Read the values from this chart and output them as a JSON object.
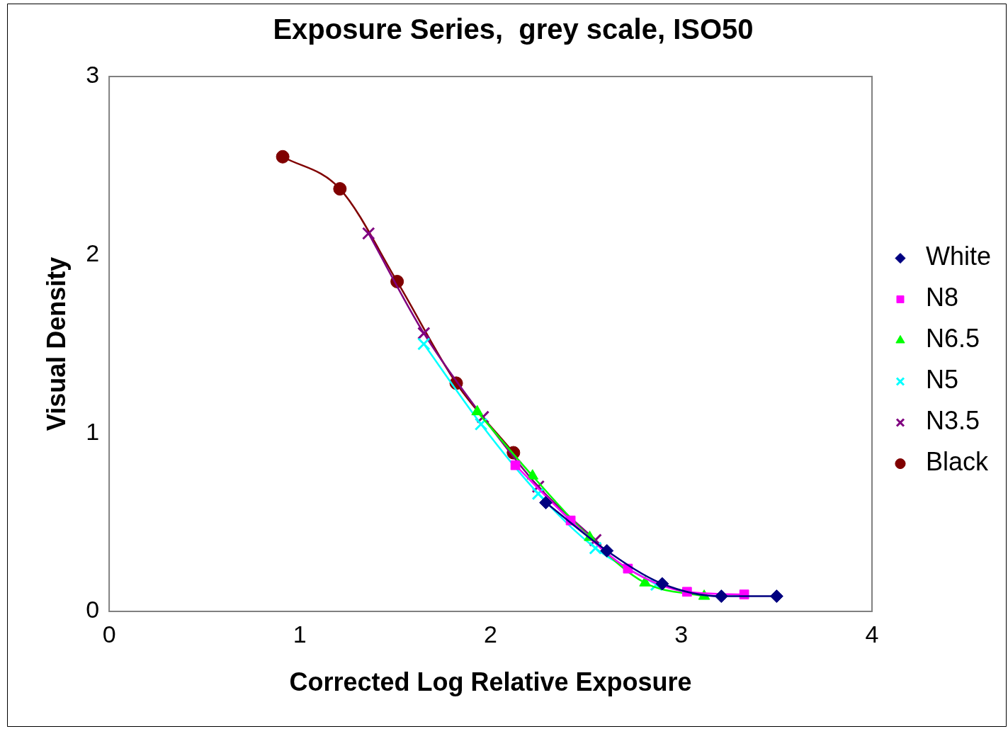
{
  "chart_data": {
    "type": "line",
    "title": "Exposure Series,  grey scale, ISO50",
    "xlabel": "Corrected Log Relative Exposure",
    "ylabel": "Visual Density",
    "xlim": [
      0,
      4
    ],
    "xticks": [
      0,
      1,
      2,
      3,
      4
    ],
    "ylim": [
      0,
      3
    ],
    "yticks": [
      0,
      1,
      2,
      3
    ],
    "grid": false,
    "legend": "right",
    "line_style": "solid",
    "series": [
      {
        "name": "White",
        "color": "#000080",
        "marker": "diamond",
        "x": [
          2.29,
          2.61,
          2.9,
          3.21,
          3.5
        ],
        "values": [
          0.61,
          0.34,
          0.155,
          0.085,
          0.085
        ]
      },
      {
        "name": "N8",
        "color": "#ff00ff",
        "marker": "square",
        "x": [
          2.13,
          2.42,
          2.72,
          3.03,
          3.33
        ],
        "values": [
          0.82,
          0.51,
          0.24,
          0.11,
          0.095
        ]
      },
      {
        "name": "N6.5",
        "color": "#00ff00",
        "marker": "triangle",
        "x": [
          1.93,
          2.22,
          2.52,
          2.81,
          3.12
        ],
        "values": [
          1.12,
          0.76,
          0.415,
          0.16,
          0.085
        ]
      },
      {
        "name": "N5",
        "color": "#00ffff",
        "marker": "cross",
        "x": [
          1.65,
          1.95,
          2.25,
          2.55,
          2.87
        ],
        "values": [
          1.5,
          1.05,
          0.66,
          0.355,
          0.15
        ]
      },
      {
        "name": "N3.5",
        "color": "#800080",
        "marker": "cross",
        "x": [
          1.36,
          1.65,
          1.96,
          2.25,
          2.55
        ],
        "values": [
          2.12,
          1.56,
          1.09,
          0.7,
          0.4
        ]
      },
      {
        "name": "Black",
        "color": "#800000",
        "marker": "circle",
        "x": [
          0.91,
          1.21,
          1.51,
          1.82,
          2.12
        ],
        "values": [
          2.55,
          2.37,
          1.85,
          1.28,
          0.89
        ]
      }
    ]
  }
}
